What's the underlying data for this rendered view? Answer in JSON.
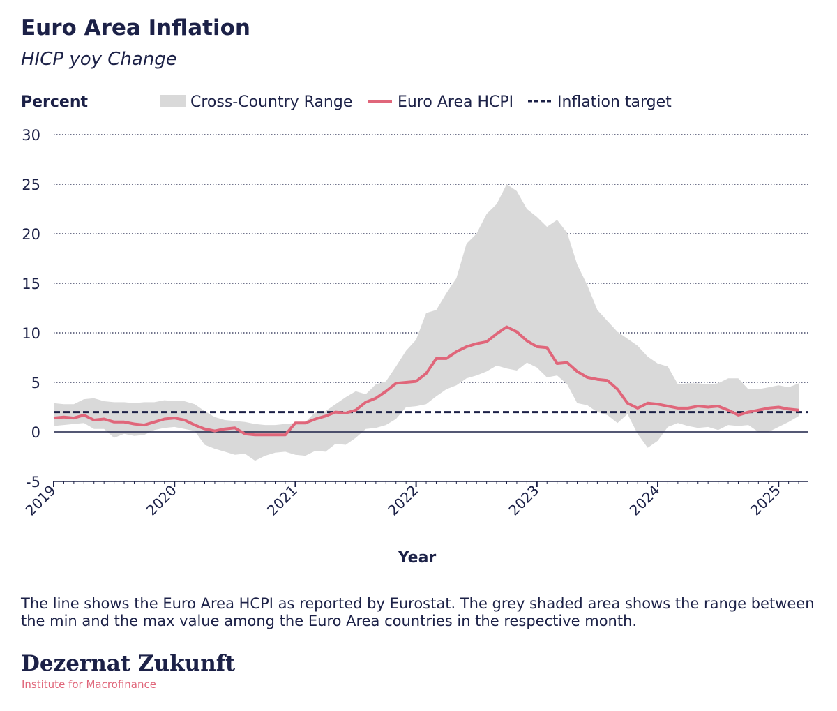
{
  "header": {
    "title": "Euro Area Inflation",
    "subtitle": "HICP yoy Change"
  },
  "chart_data": {
    "type": "line",
    "ylabel": "Percent",
    "xlabel": "Year",
    "ylim": [
      -5,
      30
    ],
    "yticks": [
      "30",
      "25",
      "20",
      "15",
      "10",
      "5",
      "0",
      "-5"
    ],
    "xticks": [
      "2019",
      "2020",
      "2021",
      "2022",
      "2023",
      "2024",
      "2025"
    ],
    "legend": [
      {
        "label": "Cross-Country Range",
        "kind": "area",
        "color": "#d9d9d9"
      },
      {
        "label": "Euro Area HCPI",
        "kind": "line",
        "color": "#e0667a"
      },
      {
        "label": "Inflation target",
        "kind": "dashed",
        "color": "#1c2147"
      }
    ],
    "inflation_target": 2,
    "x": [
      2019.0,
      2019.083,
      2019.167,
      2019.25,
      2019.333,
      2019.417,
      2019.5,
      2019.583,
      2019.667,
      2019.75,
      2019.833,
      2019.917,
      2020.0,
      2020.083,
      2020.167,
      2020.25,
      2020.333,
      2020.417,
      2020.5,
      2020.583,
      2020.667,
      2020.75,
      2020.833,
      2020.917,
      2021.0,
      2021.083,
      2021.167,
      2021.25,
      2021.333,
      2021.417,
      2021.5,
      2021.583,
      2021.667,
      2021.75,
      2021.833,
      2021.917,
      2022.0,
      2022.083,
      2022.167,
      2022.25,
      2022.333,
      2022.417,
      2022.5,
      2022.583,
      2022.667,
      2022.75,
      2022.833,
      2022.917,
      2023.0,
      2023.083,
      2023.167,
      2023.25,
      2023.333,
      2023.417,
      2023.5,
      2023.583,
      2023.667,
      2023.75,
      2023.833,
      2023.917,
      2024.0,
      2024.083,
      2024.167,
      2024.25,
      2024.333,
      2024.417,
      2024.5,
      2024.583,
      2024.667,
      2024.75,
      2024.833,
      2024.917,
      2025.0,
      2025.083,
      2025.167
    ],
    "series": [
      {
        "name": "Euro Area HCPI",
        "values": [
          1.4,
          1.5,
          1.4,
          1.7,
          1.2,
          1.3,
          1.0,
          1.0,
          0.8,
          0.7,
          1.0,
          1.3,
          1.4,
          1.2,
          0.7,
          0.3,
          0.1,
          0.3,
          0.4,
          -0.2,
          -0.3,
          -0.3,
          -0.3,
          -0.3,
          0.9,
          0.9,
          1.3,
          1.6,
          2.0,
          1.9,
          2.2,
          3.0,
          3.4,
          4.1,
          4.9,
          5.0,
          5.1,
          5.9,
          7.4,
          7.4,
          8.1,
          8.6,
          8.9,
          9.1,
          9.9,
          10.6,
          10.1,
          9.2,
          8.6,
          8.5,
          6.9,
          7.0,
          6.1,
          5.5,
          5.3,
          5.2,
          4.3,
          2.9,
          2.4,
          2.9,
          2.8,
          2.6,
          2.4,
          2.4,
          2.6,
          2.5,
          2.6,
          2.2,
          1.7,
          2.0,
          2.2,
          2.4,
          2.5,
          2.3,
          2.2
        ]
      },
      {
        "name": "Cross-Country Range min",
        "values": [
          0.6,
          0.7,
          0.8,
          0.9,
          0.3,
          0.3,
          -0.6,
          -0.2,
          -0.4,
          -0.3,
          0.2,
          0.4,
          0.5,
          0.3,
          0.1,
          -1.3,
          -1.7,
          -2.0,
          -2.3,
          -2.2,
          -2.9,
          -2.4,
          -2.1,
          -2.0,
          -2.3,
          -2.4,
          -1.9,
          -2.0,
          -1.2,
          -1.3,
          -0.6,
          0.3,
          0.4,
          0.7,
          1.3,
          2.5,
          2.6,
          2.8,
          3.6,
          4.3,
          4.7,
          5.4,
          5.7,
          6.1,
          6.7,
          6.4,
          6.2,
          7.0,
          6.5,
          5.5,
          5.7,
          4.8,
          2.9,
          2.7,
          2.0,
          1.7,
          0.9,
          1.8,
          -0.2,
          -1.6,
          -0.9,
          0.5,
          0.9,
          0.6,
          0.4,
          0.5,
          0.2,
          0.7,
          0.6,
          0.7,
          0.0,
          0.0,
          0.5,
          1.0,
          1.6
        ]
      },
      {
        "name": "Cross-Country Range max",
        "values": [
          2.9,
          2.8,
          2.8,
          3.3,
          3.4,
          3.1,
          3.0,
          3.0,
          2.9,
          3.0,
          3.0,
          3.2,
          3.1,
          3.1,
          2.8,
          2.1,
          1.5,
          1.2,
          1.1,
          1.0,
          0.8,
          0.7,
          0.7,
          0.8,
          0.9,
          1.0,
          2.0,
          2.1,
          2.8,
          3.5,
          4.1,
          3.8,
          4.8,
          5.1,
          6.6,
          8.2,
          9.3,
          12.0,
          12.3,
          14.0,
          15.5,
          19.0,
          20.0,
          22.0,
          23.0,
          25.0,
          24.3,
          22.5,
          21.7,
          20.7,
          21.4,
          20.1,
          16.9,
          14.8,
          12.3,
          11.2,
          10.1,
          9.4,
          8.7,
          7.6,
          6.9,
          6.6,
          4.8,
          4.9,
          4.9,
          4.8,
          4.9,
          5.4,
          5.4,
          4.3,
          4.3,
          4.5,
          4.7,
          4.5,
          4.9
        ]
      }
    ]
  },
  "footnote": "The line shows the Euro Area HCPI as reported by Eurostat. The grey shaded area shows the range between the min and the max value among the Euro Area countries in the respective month.",
  "brand": {
    "name": "Dezernat Zukunft",
    "tagline": "Institute for Macrofinance"
  }
}
